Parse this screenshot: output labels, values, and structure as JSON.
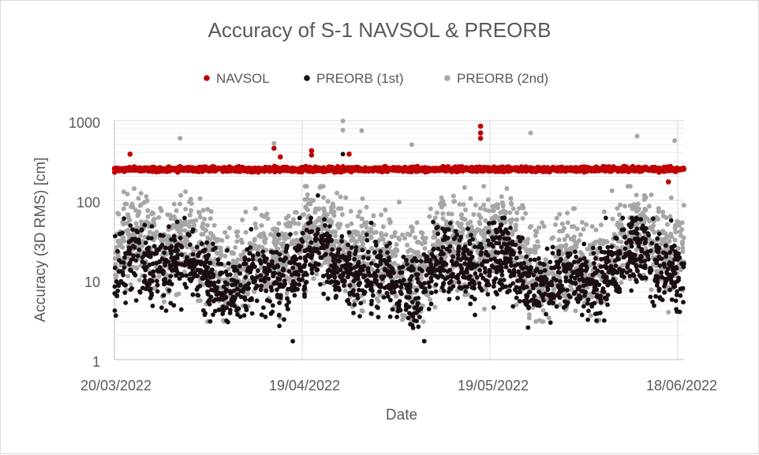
{
  "chart_data": {
    "type": "scatter",
    "title": "Accuracy of S-1 NAVSOL & PREORB",
    "xlabel": "Date",
    "ylabel": "Accuracy (3D RMS) [cm]",
    "y_scale": "log",
    "ylim": [
      1,
      1000
    ],
    "x_range": [
      "2022-03-20",
      "2022-06-19"
    ],
    "y_ticks": [
      "1",
      "10",
      "100",
      "1000"
    ],
    "x_ticks": [
      "20/03/2022",
      "19/04/2022",
      "19/05/2022",
      "18/06/2022"
    ],
    "grid": true,
    "legend_position": "top",
    "series": [
      {
        "name": "NAVSOL",
        "color": "#c00000",
        "typical_range": [
          200,
          300
        ],
        "points": [
          {
            "x": "2022-03-22",
            "y": 380
          },
          {
            "x": "2022-04-14",
            "y": 450
          },
          {
            "x": "2022-04-15",
            "y": 350
          },
          {
            "x": "2022-04-20",
            "y": 420
          },
          {
            "x": "2022-04-20",
            "y": 370
          },
          {
            "x": "2022-04-26",
            "y": 380
          },
          {
            "x": "2022-05-17",
            "y": 850
          },
          {
            "x": "2022-05-17",
            "y": 700
          },
          {
            "x": "2022-05-17",
            "y": 600
          },
          {
            "x": "2022-06-16",
            "y": 170
          }
        ]
      },
      {
        "name": "PREORB (1st)",
        "color": "#1a0f0f",
        "typical_range": [
          2.5,
          60
        ],
        "points": [
          {
            "x": "2022-04-17",
            "y": 1.7
          },
          {
            "x": "2022-04-25",
            "y": 380
          },
          {
            "x": "2022-05-08",
            "y": 1.7
          },
          {
            "x": "2022-04-21",
            "y": 115
          },
          {
            "x": "2022-06-06",
            "y": 60
          }
        ]
      },
      {
        "name": "PREORB (2nd)",
        "color": "#a6a6a6",
        "typical_range": [
          3,
          150
        ],
        "points": [
          {
            "x": "2022-03-30",
            "y": 600
          },
          {
            "x": "2022-04-14",
            "y": 520
          },
          {
            "x": "2022-04-25",
            "y": 990
          },
          {
            "x": "2022-04-25",
            "y": 760
          },
          {
            "x": "2022-04-28",
            "y": 750
          },
          {
            "x": "2022-05-06",
            "y": 500
          },
          {
            "x": "2022-05-25",
            "y": 700
          },
          {
            "x": "2022-06-11",
            "y": 640
          },
          {
            "x": "2022-06-17",
            "y": 560
          },
          {
            "x": "2022-05-04",
            "y": 95
          }
        ]
      }
    ]
  }
}
